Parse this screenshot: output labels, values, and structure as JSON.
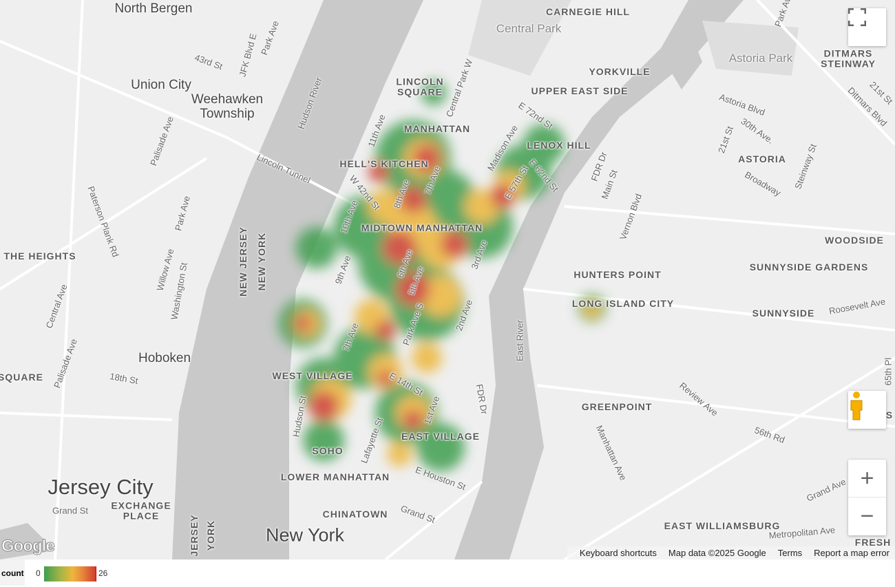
{
  "map": {
    "labels": [
      "North Bergen",
      "Union City",
      "Weehawken Township",
      "Hoboken",
      "Jersey City",
      "New York",
      "EXCHANGE PLACE",
      "THE HEIGHTS",
      "SQUARE",
      "MANHATTAN",
      "HELL'S KITCHEN",
      "MIDTOWN MANHATTAN",
      "LINCOLN SQUARE",
      "UPPER EAST SIDE",
      "YORKVILLE",
      "LENOX HILL",
      "CARNEGIE HILL",
      "Central Park",
      "Astoria Park",
      "DITMARS STEINWAY",
      "ASTORIA",
      "WOODSIDE",
      "SUNNYSIDE GARDENS",
      "SUNNYSIDE",
      "HUNTERS POINT",
      "LONG ISLAND CITY",
      "GREENPOINT",
      "EAST WILLIAMSBURG",
      "WEST VILLAGE",
      "EAST VILLAGE",
      "SOHO",
      "LOWER MANHATTAN",
      "CHINATOWN",
      "NEW JERSEY",
      "NEW YORK",
      "JERSEY",
      "YORK",
      "FRESH",
      "MAS",
      "Lincoln Tunnel",
      "Hudson River",
      "East River",
      "Park Ave",
      "JFK Blvd E",
      "43rd St",
      "Palisade Ave",
      "Paterson Plank Rd",
      "Park Ave",
      "Willow Ave",
      "Washington St",
      "Central Ave",
      "Palisade Ave",
      "18th St",
      "Grand St",
      "11th Ave",
      "10th Ave",
      "9th Ave",
      "8th Ave",
      "7th Ave",
      "6th Ave",
      "5th Ave",
      "3rd Ave",
      "2nd Ave",
      "1st Ave",
      "Park Ave S",
      "W 42nd St",
      "E 14th St",
      "E 57th St",
      "E 62nd St",
      "Madison Ave",
      "Central Park W",
      "E 72nd St",
      "FDR Dr",
      "FDR Dr",
      "Main St",
      "Vernon Blvd",
      "Astoria Blvd",
      "30th Ave.",
      "21st St",
      "Steinway St",
      "Broadway",
      "Roosevelt Ave",
      "Review Ave",
      "56th Rd",
      "Manhattan Ave",
      "Grand Ave",
      "Metropolitan Ave",
      "Grand St",
      "E Houston St",
      "Lafayette St",
      "Hudson St",
      "7th Ave",
      "Ditmars Blvd",
      "21st St",
      "Park Ave",
      "65th Pl"
    ]
  },
  "controls": {
    "fullscreen_icon": "fullscreen-icon",
    "pegman_icon": "street-view-pegman-icon",
    "zoom_in": "+",
    "zoom_out": "−"
  },
  "attribution": {
    "logo": "Google",
    "keyboard": "Keyboard shortcuts",
    "map_data": "Map data ©2025 Google",
    "terms": "Terms",
    "report": "Report a map error"
  },
  "legend": {
    "title": "count",
    "min": "0",
    "max": "26",
    "colors": [
      "#3f9e50",
      "#edb73e",
      "#cf3d30"
    ]
  }
}
